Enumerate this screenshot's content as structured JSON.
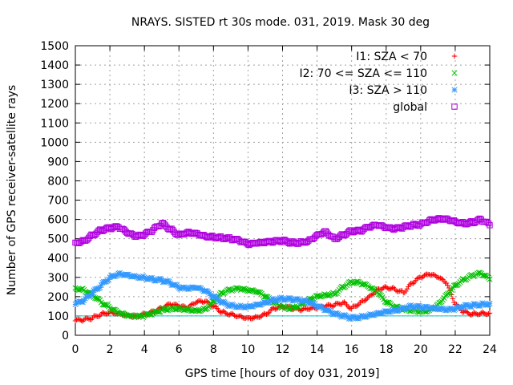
{
  "chart_data": {
    "type": "scatter",
    "title": "NRAYS. SISTED rt 30s mode. 031, 2019. Mask 30 deg",
    "xlabel": "GPS time [hours of doy 031, 2019]",
    "ylabel": "Number of GPS receiver-satellite rays",
    "xlim": [
      0,
      24
    ],
    "ylim": [
      0,
      1500
    ],
    "xticks": [
      "0",
      "2",
      "4",
      "6",
      "8",
      "10",
      "12",
      "14",
      "16",
      "18",
      "20",
      "22",
      "24"
    ],
    "yticks": [
      "0",
      "100",
      "200",
      "300",
      "400",
      "500",
      "600",
      "700",
      "800",
      "900",
      "1000",
      "1100",
      "1200",
      "1300",
      "1400",
      "1500"
    ],
    "grid": true,
    "legend_position": "top-right",
    "reference_line": {
      "y": 100
    },
    "series": [
      {
        "name": "I1: SZA < 70",
        "color": "#ff0000",
        "marker": "plus",
        "x": [
          0,
          0.5,
          1,
          1.5,
          2,
          2.5,
          3,
          3.5,
          4,
          4.5,
          5,
          5.5,
          6,
          6.5,
          7,
          7.5,
          8,
          8.5,
          9,
          9.5,
          10,
          10.5,
          11,
          11.5,
          12,
          12.5,
          13,
          13.5,
          14,
          14.5,
          15,
          15.5,
          16,
          16.5,
          17,
          17.5,
          18,
          18.5,
          19,
          19.5,
          20,
          20.5,
          21,
          21.5,
          22,
          22.5,
          23,
          23.5,
          24
        ],
        "y": [
          75,
          80,
          90,
          110,
          120,
          115,
          105,
          100,
          110,
          120,
          140,
          160,
          150,
          140,
          170,
          175,
          150,
          120,
          110,
          100,
          90,
          95,
          110,
          140,
          150,
          140,
          130,
          135,
          140,
          150,
          155,
          170,
          140,
          170,
          200,
          240,
          250,
          240,
          220,
          270,
          300,
          315,
          300,
          270,
          160,
          120,
          110,
          115,
          115
        ]
      },
      {
        "name": "I2: 70 <= SZA <= 110",
        "color": "#00c000",
        "marker": "cross",
        "x": [
          0,
          0.5,
          1,
          1.5,
          2,
          2.5,
          3,
          3.5,
          4,
          4.5,
          5,
          5.5,
          6,
          6.5,
          7,
          7.5,
          8,
          8.5,
          9,
          9.5,
          10,
          10.5,
          11,
          11.5,
          12,
          12.5,
          13,
          13.5,
          14,
          14.5,
          15,
          15.5,
          16,
          16.5,
          17,
          17.5,
          18,
          18.5,
          19,
          19.5,
          20,
          20.5,
          21,
          21.5,
          22,
          22.5,
          23,
          23.5,
          24
        ],
        "y": [
          245,
          235,
          210,
          170,
          140,
          115,
          100,
          95,
          100,
          115,
          130,
          140,
          140,
          135,
          130,
          135,
          175,
          220,
          235,
          240,
          230,
          225,
          200,
          170,
          145,
          140,
          155,
          185,
          205,
          210,
          215,
          250,
          275,
          270,
          250,
          220,
          170,
          145,
          135,
          130,
          125,
          130,
          160,
          210,
          260,
          290,
          310,
          320,
          290
        ]
      },
      {
        "name": "I3: SZA > 110",
        "color": "#3399ff",
        "marker": "star",
        "x": [
          0,
          0.5,
          1,
          1.5,
          2,
          2.5,
          3,
          3.5,
          4,
          4.5,
          5,
          5.5,
          6,
          6.5,
          7,
          7.5,
          8,
          8.5,
          9,
          9.5,
          10,
          10.5,
          11,
          11.5,
          12,
          12.5,
          13,
          13.5,
          14,
          14.5,
          15,
          15.5,
          16,
          16.5,
          17,
          17.5,
          18,
          18.5,
          19,
          19.5,
          20,
          20.5,
          21,
          21.5,
          22,
          22.5,
          23,
          23.5,
          24
        ],
        "y": [
          160,
          180,
          220,
          260,
          300,
          320,
          315,
          305,
          300,
          290,
          285,
          270,
          245,
          240,
          245,
          230,
          200,
          170,
          155,
          150,
          150,
          160,
          170,
          185,
          190,
          185,
          180,
          170,
          150,
          130,
          110,
          100,
          90,
          95,
          105,
          115,
          125,
          130,
          140,
          150,
          145,
          140,
          135,
          130,
          135,
          150,
          155,
          160,
          165
        ]
      },
      {
        "name": "global",
        "color": "#b000e0",
        "marker": "square",
        "x": [
          0,
          0.5,
          1,
          1.5,
          2,
          2.5,
          3,
          3.5,
          4,
          4.5,
          5,
          5.5,
          6,
          6.5,
          7,
          7.5,
          8,
          8.5,
          9,
          9.5,
          10,
          10.5,
          11,
          11.5,
          12,
          12.5,
          13,
          13.5,
          14,
          14.5,
          15,
          15.5,
          16,
          16.5,
          17,
          17.5,
          18,
          18.5,
          19,
          19.5,
          20,
          20.5,
          21,
          21.5,
          22,
          22.5,
          23,
          23.5,
          24
        ],
        "y": [
          480,
          490,
          520,
          545,
          555,
          560,
          530,
          510,
          520,
          545,
          580,
          550,
          520,
          535,
          530,
          515,
          510,
          505,
          500,
          490,
          470,
          475,
          480,
          485,
          490,
          480,
          480,
          490,
          520,
          540,
          500,
          520,
          540,
          540,
          560,
          570,
          555,
          550,
          560,
          570,
          575,
          595,
          605,
          605,
          590,
          580,
          585,
          600,
          570
        ]
      }
    ]
  }
}
